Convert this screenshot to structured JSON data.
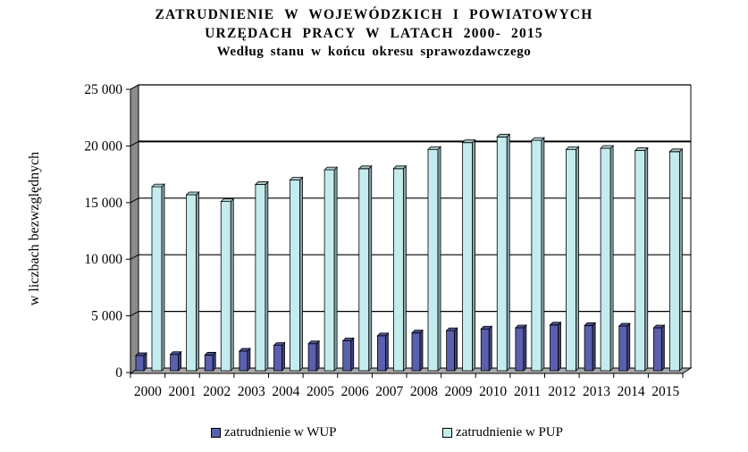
{
  "chart_data": {
    "type": "bar",
    "title_lines": [
      "ZATRUDNIENIE  W  WOJEWÓDZKICH  I  POWIATOWYCH",
      "URZĘDACH  PRACY  W  LATACH  2000- 2015"
    ],
    "subtitle": "Według  stanu  w  końcu  okresu  sprawozdawczego",
    "ylabel": "w liczbach bezwzględnych",
    "xlabel": "",
    "ylim": [
      0,
      25000
    ],
    "yticks": [
      0,
      5000,
      10000,
      15000,
      20000,
      25000
    ],
    "ytick_labels": [
      "0",
      "5 000",
      "10 000",
      "15 000",
      "20 000",
      "25 000"
    ],
    "categories": [
      "2000",
      "2001",
      "2002",
      "2003",
      "2004",
      "2005",
      "2006",
      "2007",
      "2008",
      "2009",
      "2010",
      "2011",
      "2012",
      "2013",
      "2014",
      "2015"
    ],
    "series": [
      {
        "name": "zatrudnienie w WUP",
        "color": "#5a5fae",
        "values": [
          1100,
          1200,
          1150,
          1500,
          2000,
          2150,
          2400,
          2850,
          3100,
          3300,
          3450,
          3550,
          3800,
          3750,
          3700,
          3550
        ]
      },
      {
        "name": "zatrudnienie w PUP",
        "color": "#c4ecee",
        "values": [
          16000,
          15300,
          14700,
          16200,
          16600,
          17500,
          17600,
          17600,
          19300,
          19900,
          20400,
          20100,
          19300,
          19400,
          19200,
          19100
        ]
      }
    ],
    "grid": true,
    "legend": "bottom"
  }
}
